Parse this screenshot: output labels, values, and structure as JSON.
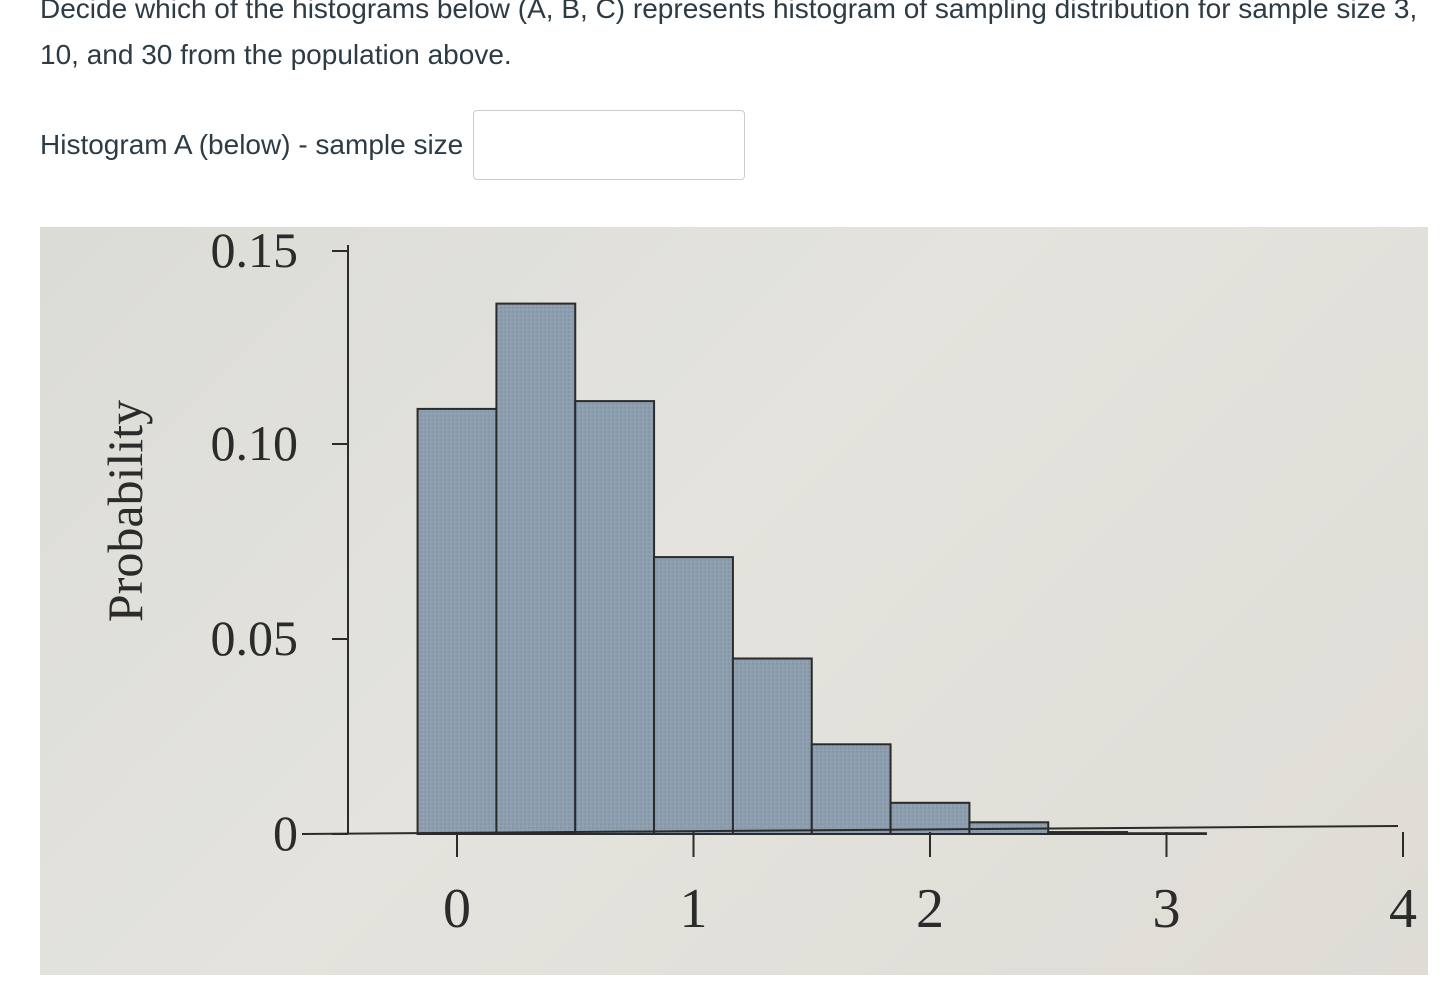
{
  "question": {
    "text": "Decide which of the histograms below (A, B, C) represents histogram of sampling distribution for sample size 3, 10, and 30 from the population above."
  },
  "answer": {
    "label": "Histogram A (below) - sample size",
    "value": "",
    "placeholder": ""
  },
  "colors": {
    "bar_fill": "#8c9eae",
    "paper": "#e0dfd9",
    "ink": "#2b2b2b"
  },
  "chart_data": {
    "type": "bar",
    "title": "",
    "xlabel": "",
    "ylabel": "Probability",
    "bin_width": 0.3333,
    "bins": [
      {
        "x0": -0.1667,
        "x1": 0.1667,
        "value": 0.109
      },
      {
        "x0": 0.1667,
        "x1": 0.5,
        "value": 0.136
      },
      {
        "x0": 0.5,
        "x1": 0.8333,
        "value": 0.111
      },
      {
        "x0": 0.8333,
        "x1": 1.1667,
        "value": 0.071
      },
      {
        "x0": 1.1667,
        "x1": 1.5,
        "value": 0.045
      },
      {
        "x0": 1.5,
        "x1": 1.8333,
        "value": 0.023
      },
      {
        "x0": 1.8333,
        "x1": 2.1667,
        "value": 0.008
      },
      {
        "x0": 2.1667,
        "x1": 2.5,
        "value": 0.003
      },
      {
        "x0": 2.5,
        "x1": 2.8333,
        "value": 0.0005
      },
      {
        "x0": 2.8333,
        "x1": 3.1667,
        "value": 0.0002
      }
    ],
    "x_ticks": [
      "0",
      "1",
      "2",
      "3",
      "4"
    ],
    "x_tick_values": [
      0,
      1,
      2,
      3,
      4
    ],
    "y_ticks": [
      "0",
      "0.05",
      "0.10",
      "0.15"
    ],
    "y_tick_values": [
      0,
      0.05,
      0.1,
      0.15
    ],
    "xlim": [
      -0.2,
      4.3
    ],
    "ylim": [
      0,
      0.15
    ],
    "grid": false,
    "legend": "none"
  }
}
